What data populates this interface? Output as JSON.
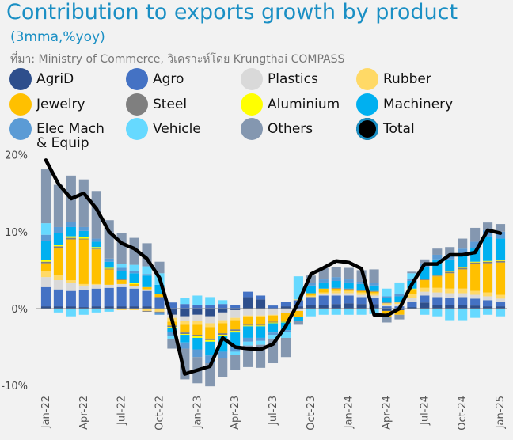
{
  "title": "Contribution to exports growth by product",
  "subtitle": "(3mma,%yoy)",
  "source": "ที่มา: Ministry of Commerce, วิเคราะห์โดย Krungthai COMPASS",
  "legend": [
    {
      "label": "AgriD",
      "color": "#2e4f8c"
    },
    {
      "label": "Agro",
      "color": "#4472c4"
    },
    {
      "label": "Plastics",
      "color": "#d9d9d9"
    },
    {
      "label": "Rubber",
      "color": "#ffd966"
    },
    {
      "label": "Jewelry",
      "color": "#ffc000"
    },
    {
      "label": "Steel",
      "color": "#7f7f7f"
    },
    {
      "label": "Aluminium",
      "color": "#ffff00"
    },
    {
      "label": "Machinery",
      "color": "#00b0f0"
    },
    {
      "label": "Elec Mach\n& Equip",
      "color": "#5b9bd5"
    },
    {
      "label": "Vehicle",
      "color": "#66d9ff"
    },
    {
      "label": "Others",
      "color": "#8497b0"
    },
    {
      "label": "Total",
      "color": "#000000"
    }
  ],
  "chart_data": {
    "type": "bar",
    "stacked": true,
    "ylim": [
      -10,
      20
    ],
    "yticks": [
      "20%",
      "10%",
      "0%",
      "-10%"
    ],
    "xtick_labels": [
      "Jan-22",
      "Apr-22",
      "Jul-22",
      "Oct-22",
      "Jan-23",
      "Apr-23",
      "Jul-23",
      "Oct-23",
      "Jan-24",
      "Apr-24",
      "Jul-24",
      "Oct-24",
      "Jan-25"
    ],
    "categories": [
      "Jan-22",
      "Feb-22",
      "Mar-22",
      "Apr-22",
      "May-22",
      "Jun-22",
      "Jul-22",
      "Aug-22",
      "Sep-22",
      "Oct-22",
      "Nov-22",
      "Dec-22",
      "Jan-23",
      "Feb-23",
      "Mar-23",
      "Apr-23",
      "May-23",
      "Jun-23",
      "Jul-23",
      "Aug-23",
      "Sep-23",
      "Oct-23",
      "Nov-23",
      "Dec-23",
      "Jan-24",
      "Feb-24",
      "Mar-24",
      "Apr-24",
      "May-24",
      "Jun-24",
      "Jul-24",
      "Aug-24",
      "Sep-24",
      "Oct-24",
      "Nov-24",
      "Dec-24",
      "Jan-25"
    ],
    "series": [
      {
        "name": "AgriD",
        "color": "#2e4f8c",
        "values": [
          0.3,
          0.3,
          0.3,
          0.2,
          0.3,
          0.3,
          0.3,
          0.3,
          0.3,
          0.0,
          -0.8,
          -1.0,
          -0.8,
          -1.0,
          -0.5,
          -0.2,
          1.5,
          1.2,
          0.0,
          0.3,
          0.3,
          0.5,
          0.5,
          0.6,
          0.7,
          0.6,
          0.6,
          -0.3,
          -0.2,
          0.2,
          0.8,
          0.5,
          0.5,
          0.5,
          0.4,
          0.3,
          0.3
        ]
      },
      {
        "name": "Agro",
        "color": "#4472c4",
        "values": [
          2.5,
          2.2,
          2.0,
          2.2,
          2.3,
          2.4,
          2.5,
          2.3,
          2.0,
          1.5,
          0.8,
          0.6,
          0.5,
          0.5,
          0.6,
          0.5,
          0.7,
          0.5,
          0.4,
          0.6,
          0.8,
          1.0,
          1.2,
          1.1,
          1.0,
          0.9,
          0.8,
          0.3,
          0.3,
          0.7,
          0.9,
          1.0,
          0.9,
          1.0,
          0.9,
          0.8,
          0.6
        ]
      },
      {
        "name": "Plastics",
        "color": "#d9d9d9",
        "values": [
          1.3,
          1.2,
          1.0,
          0.6,
          0.5,
          0.4,
          0.4,
          0.3,
          0.2,
          0.0,
          -0.4,
          -0.6,
          -0.8,
          -0.9,
          -1.0,
          -1.0,
          -0.9,
          -0.9,
          -0.8,
          -0.6,
          -0.3,
          0.0,
          0.2,
          0.3,
          0.3,
          0.3,
          0.3,
          0.2,
          0.3,
          0.5,
          0.5,
          0.6,
          0.6,
          0.5,
          0.5,
          0.5,
          0.4
        ]
      },
      {
        "name": "Rubber",
        "color": "#ffd966",
        "values": [
          0.8,
          0.7,
          0.4,
          0.2,
          0.1,
          -0.1,
          -0.2,
          -0.2,
          -0.3,
          -0.4,
          -0.5,
          -0.5,
          -0.5,
          -0.5,
          -0.4,
          -0.3,
          -0.2,
          -0.2,
          -0.1,
          0.0,
          0.1,
          0.2,
          0.2,
          0.3,
          0.3,
          0.3,
          0.3,
          0.2,
          0.2,
          0.5,
          0.5,
          0.6,
          0.6,
          0.6,
          0.5,
          0.5,
          0.5
        ]
      },
      {
        "name": "Jewelry",
        "color": "#ffc000",
        "values": [
          1.0,
          3.5,
          5.3,
          5.8,
          4.5,
          2.0,
          0.5,
          0.3,
          0.3,
          0.4,
          -0.5,
          -1.0,
          -1.3,
          -1.5,
          -1.3,
          -1.2,
          -1.0,
          -1.0,
          -0.8,
          -1.0,
          -0.8,
          0.3,
          0.5,
          0.3,
          0.2,
          0.2,
          0.2,
          -0.8,
          -0.6,
          0.5,
          1.0,
          1.5,
          2.0,
          2.5,
          3.5,
          3.8,
          4.2
        ]
      },
      {
        "name": "Steel",
        "color": "#7f7f7f",
        "values": [
          0.2,
          0.2,
          0.2,
          0.1,
          0.1,
          0.1,
          0.1,
          0.0,
          -0.1,
          -0.1,
          -0.2,
          -0.2,
          -0.2,
          -0.2,
          -0.2,
          -0.2,
          -0.1,
          -0.1,
          -0.1,
          -0.1,
          0.0,
          0.0,
          0.0,
          0.1,
          0.1,
          0.1,
          0.1,
          0.1,
          0.1,
          0.1,
          0.1,
          0.1,
          0.2,
          0.2,
          0.2,
          0.2,
          0.2
        ]
      },
      {
        "name": "Aluminium",
        "color": "#ffff00",
        "values": [
          0.2,
          0.2,
          0.2,
          0.2,
          0.2,
          0.1,
          0.1,
          0.1,
          0.0,
          0.0,
          -0.1,
          -0.1,
          -0.2,
          -0.2,
          -0.2,
          -0.2,
          -0.1,
          -0.1,
          -0.1,
          -0.1,
          0.0,
          0.0,
          0.0,
          0.0,
          0.0,
          0.0,
          0.0,
          0.0,
          0.0,
          0.1,
          0.1,
          0.1,
          0.1,
          0.1,
          0.1,
          0.1,
          0.1
        ]
      },
      {
        "name": "Machinery",
        "color": "#00b0f0",
        "values": [
          2.5,
          1.5,
          1.2,
          0.8,
          0.7,
          0.8,
          1.0,
          1.3,
          1.5,
          1.2,
          -0.5,
          -1.0,
          -1.5,
          -1.8,
          -2.0,
          -1.8,
          -1.5,
          -1.5,
          -1.2,
          -1.0,
          -0.5,
          1.0,
          0.8,
          0.9,
          0.8,
          0.8,
          0.7,
          0.6,
          0.7,
          1.0,
          1.5,
          2.0,
          1.5,
          1.6,
          1.8,
          3.2,
          2.8
        ]
      },
      {
        "name": "Elec Mach & Equip",
        "color": "#5b9bd5",
        "values": [
          0.8,
          0.8,
          0.7,
          0.5,
          0.4,
          0.4,
          0.4,
          0.3,
          0.2,
          -0.3,
          -0.6,
          -0.8,
          -1.0,
          -1.0,
          -0.8,
          -0.7,
          -0.5,
          -0.4,
          -0.3,
          -0.2,
          0.0,
          0.3,
          0.4,
          0.5,
          0.4,
          0.3,
          0.3,
          0.2,
          0.3,
          0.3,
          0.5,
          0.6,
          0.6,
          0.8,
          0.8,
          0.8,
          0.9
        ]
      },
      {
        "name": "Vehicle",
        "color": "#66d9ff",
        "values": [
          1.5,
          -0.5,
          -1.0,
          -0.8,
          -0.5,
          -0.3,
          0.5,
          0.8,
          1.0,
          1.5,
          -0.3,
          0.8,
          1.2,
          1.0,
          0.5,
          -0.4,
          -0.5,
          -0.5,
          -0.5,
          -0.8,
          3.0,
          -1.0,
          -0.8,
          -0.8,
          -0.8,
          -0.8,
          -0.7,
          1.0,
          1.5,
          0.7,
          -0.8,
          -1.0,
          -1.5,
          -1.5,
          -1.2,
          -0.8,
          -1.0
        ]
      },
      {
        "name": "Others",
        "color": "#8497b0",
        "values": [
          7.0,
          5.5,
          6.0,
          6.2,
          6.2,
          5.0,
          4.0,
          3.5,
          3.0,
          1.5,
          -1.3,
          -4.0,
          -3.4,
          -3.0,
          -2.5,
          -2.0,
          -2.8,
          -3.0,
          -3.2,
          -2.5,
          -0.5,
          1.0,
          1.5,
          1.3,
          1.5,
          1.5,
          1.8,
          -0.7,
          -0.6,
          0.2,
          0.5,
          0.8,
          1.0,
          1.3,
          1.8,
          1.0,
          1.0
        ]
      }
    ],
    "total": {
      "name": "Total",
      "color": "#000000",
      "values": [
        19.3,
        16.2,
        14.3,
        15.0,
        13.0,
        10.0,
        8.5,
        7.8,
        6.5,
        4.0,
        -1.5,
        -8.5,
        -8.0,
        -7.5,
        -3.8,
        -5.0,
        -5.2,
        -5.3,
        -4.6,
        -2.3,
        0.8,
        4.5,
        5.3,
        6.2,
        6.0,
        5.2,
        -0.8,
        -0.9,
        0.0,
        3.2,
        5.8,
        5.8,
        7.0,
        7.0,
        7.3,
        10.2,
        9.8
      ]
    }
  }
}
